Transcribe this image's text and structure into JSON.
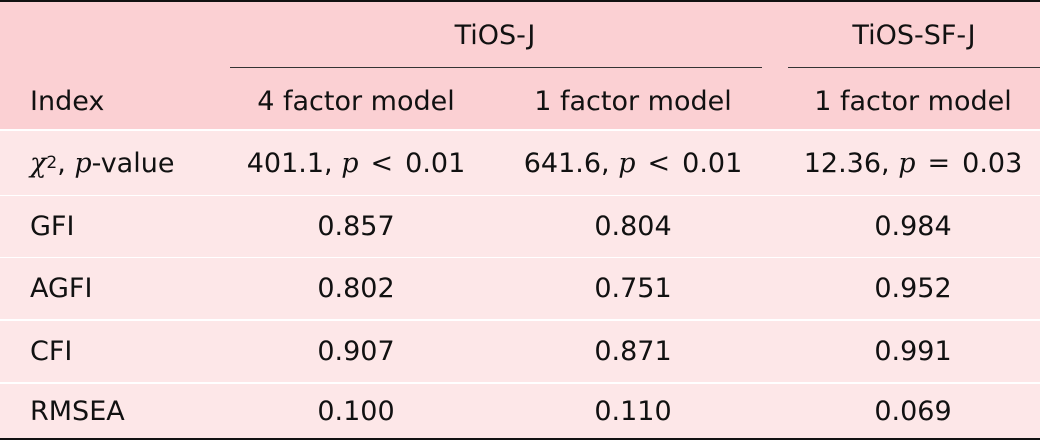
{
  "table": {
    "groups": [
      {
        "label": "TiOS-J"
      },
      {
        "label": "TiOS-SF-J"
      }
    ],
    "columns": [
      "Index",
      "4 factor model",
      "1 factor model",
      "1 factor model"
    ],
    "chi_row": {
      "label_symbol": "χ",
      "label_sup": "2",
      "label_comma": ", ",
      "label_p": "p",
      "label_suffix": "-value",
      "cells": [
        {
          "num": "401.1,",
          "p": "p",
          "rel": "<",
          "val": "0.01"
        },
        {
          "num": "641.6,",
          "p": "p",
          "rel": "<",
          "val": "0.01"
        },
        {
          "num": "12.36,",
          "p": "p",
          "rel": "=",
          "val": "0.03"
        }
      ]
    },
    "rows": [
      {
        "label": "GFI",
        "values": [
          "0.857",
          "0.804",
          "0.984"
        ]
      },
      {
        "label": "AGFI",
        "values": [
          "0.802",
          "0.751",
          "0.952"
        ]
      },
      {
        "label": "CFI",
        "values": [
          "0.907",
          "0.871",
          "0.991"
        ]
      },
      {
        "label": "RMSEA",
        "values": [
          "0.100",
          "0.110",
          "0.069"
        ]
      }
    ]
  }
}
